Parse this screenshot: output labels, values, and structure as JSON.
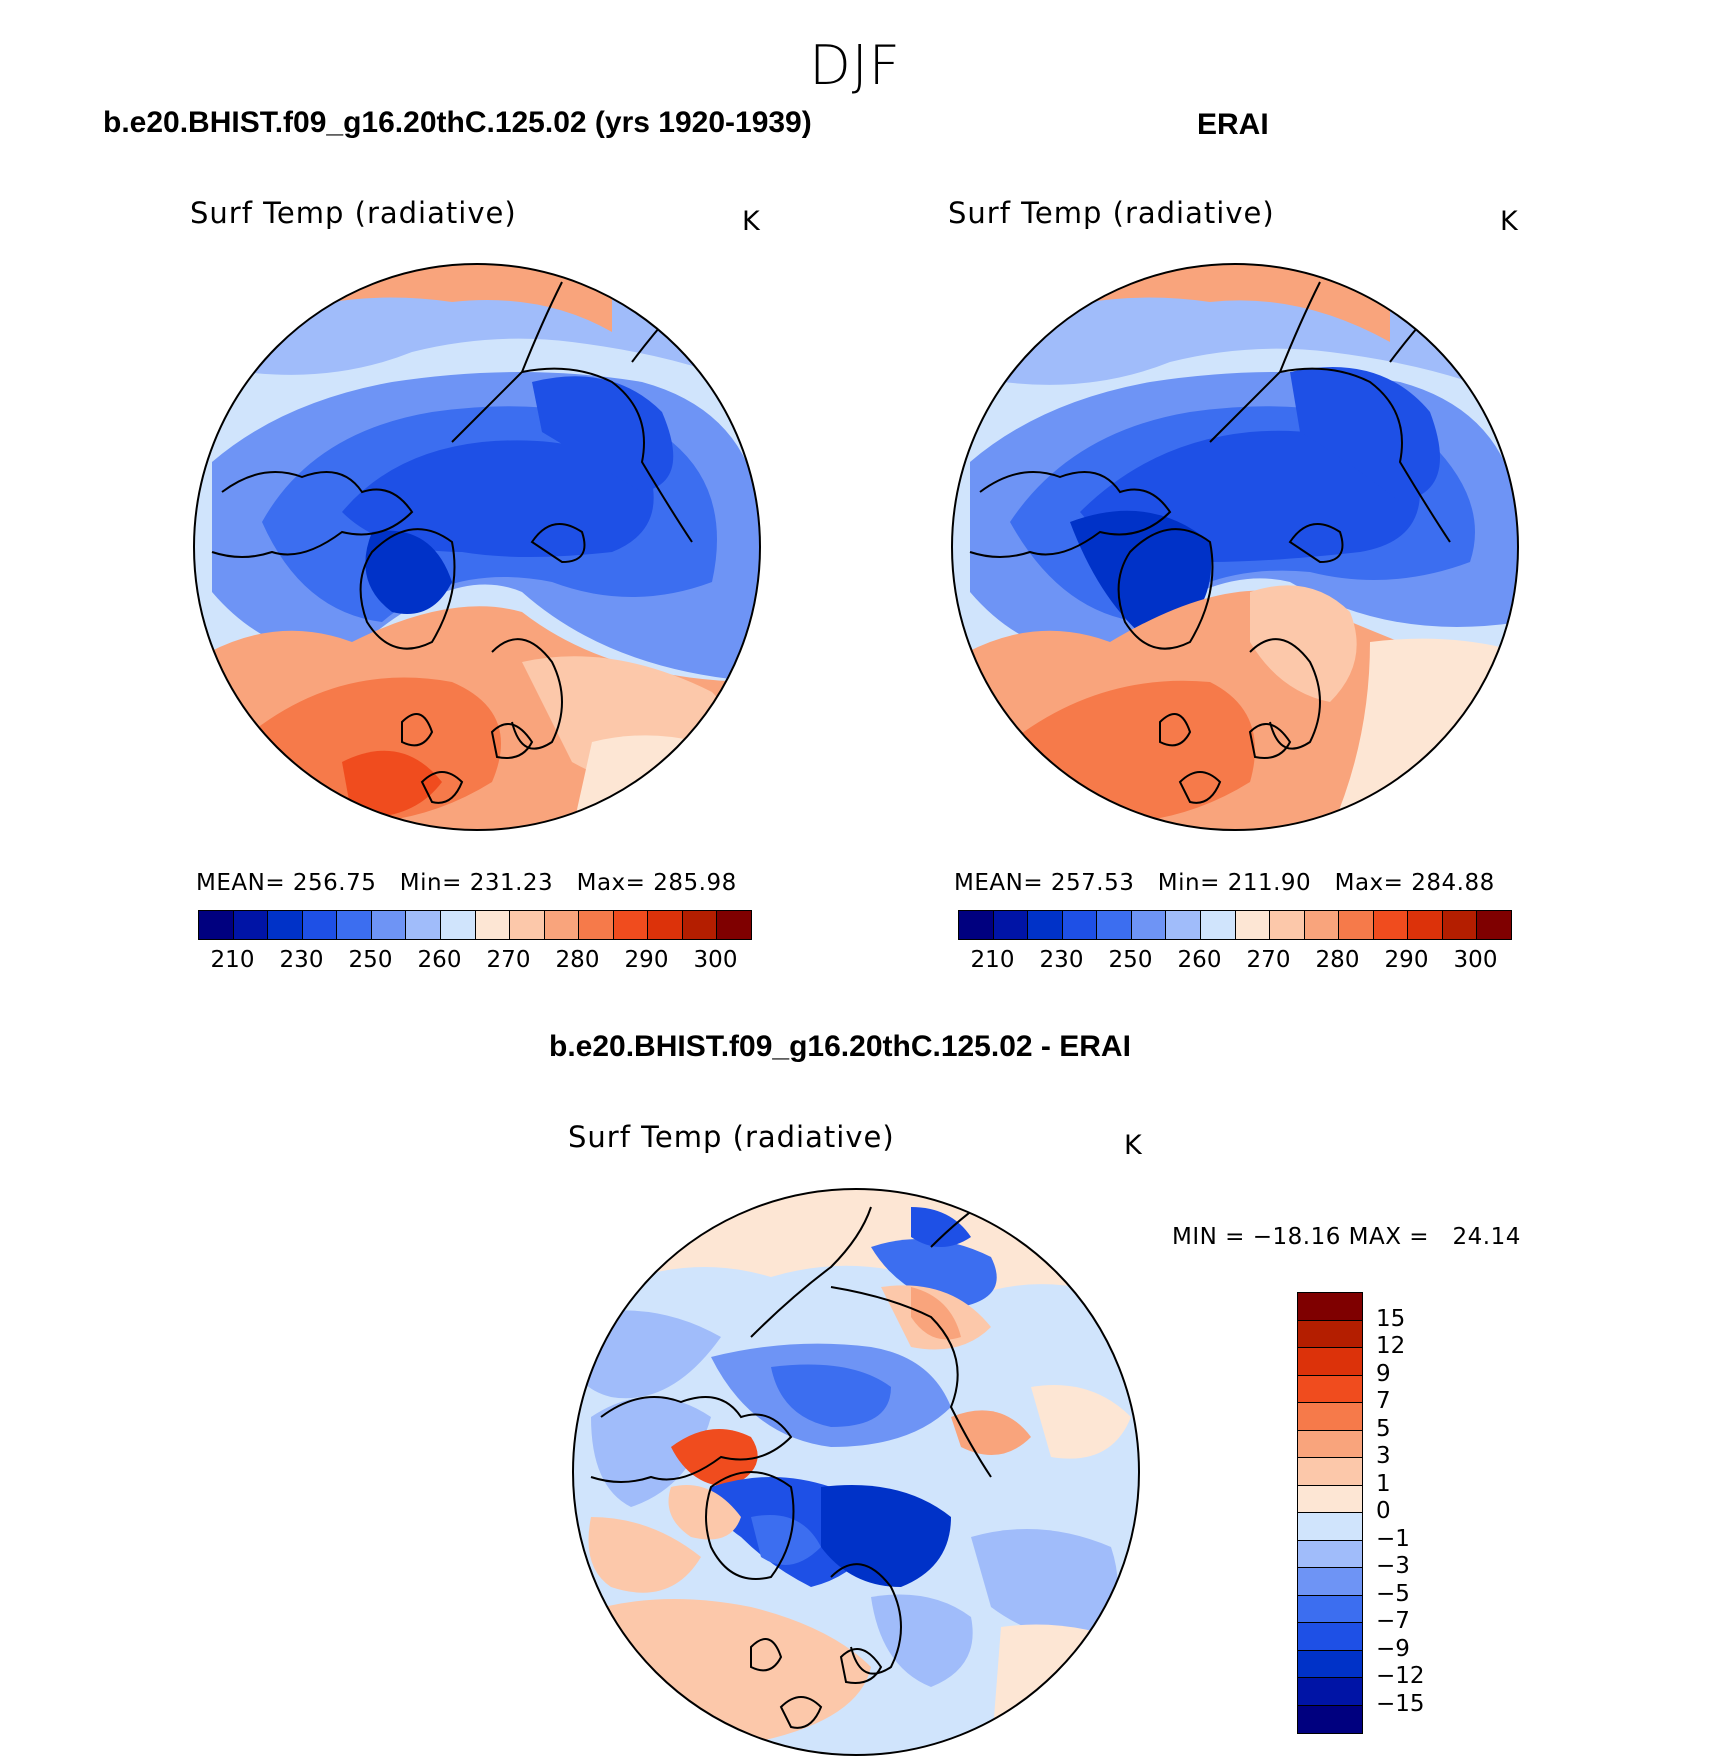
{
  "figure": {
    "season": "DJF"
  },
  "panel_left": {
    "title": "b.e20.BHIST.f09_g16.20thC.125.02 (yrs 1920-1939)",
    "variable": "Surf Temp (radiative)",
    "unit": "K",
    "stats": "MEAN= 256.75   Min= 231.23   Max= 285.98"
  },
  "panel_right": {
    "title": "ERAI",
    "variable": "Surf Temp (radiative)",
    "unit": "K",
    "stats": "MEAN= 257.53   Min= 211.90   Max= 284.88"
  },
  "panel_diff": {
    "title": "b.e20.BHIST.f09_g16.20thC.125.02 - ERAI",
    "variable": "Surf Temp (radiative)",
    "unit": "K",
    "stats": "MIN = −18.16 MAX =   24.14"
  },
  "abs_colorbar": {
    "colors": [
      "#00007f",
      "#0014a6",
      "#0032c8",
      "#1e50e6",
      "#3c6ef0",
      "#6e94f5",
      "#a0bcfa",
      "#d0e4fc",
      "#fde6d4",
      "#fcc8aa",
      "#f9a47c",
      "#f67a4a",
      "#f04c1e",
      "#dc320a",
      "#b41e00",
      "#7f0000"
    ],
    "ticks": [
      "210",
      "230",
      "250",
      "260",
      "270",
      "280",
      "290",
      "300"
    ]
  },
  "diff_colorbar": {
    "colors": [
      "#7f0000",
      "#b41e00",
      "#dc320a",
      "#f04c1e",
      "#f67a4a",
      "#f9a47c",
      "#fcc8aa",
      "#fde6d4",
      "#d0e4fc",
      "#a0bcfa",
      "#6e94f5",
      "#3c6ef0",
      "#1e50e6",
      "#0032c8",
      "#0014a6",
      "#00007f"
    ],
    "ticks": [
      "15",
      "12",
      "9",
      "7",
      "5",
      "3",
      "1",
      "0",
      "−1",
      "−3",
      "−5",
      "−7",
      "−9",
      "−12",
      "−15"
    ]
  },
  "map_colors": {
    "deep_blue": "#0032c8",
    "blue": "#1e50e6",
    "mid_blue": "#3c6ef0",
    "light_blue": "#6e94f5",
    "pale_blue": "#a0bcfa",
    "ice_blue": "#d0e4fc",
    "cream": "#fde6d4",
    "peach": "#fcc8aa",
    "salmon": "#f9a47c",
    "orange": "#f67a4a",
    "red_orange": "#f04c1e"
  }
}
